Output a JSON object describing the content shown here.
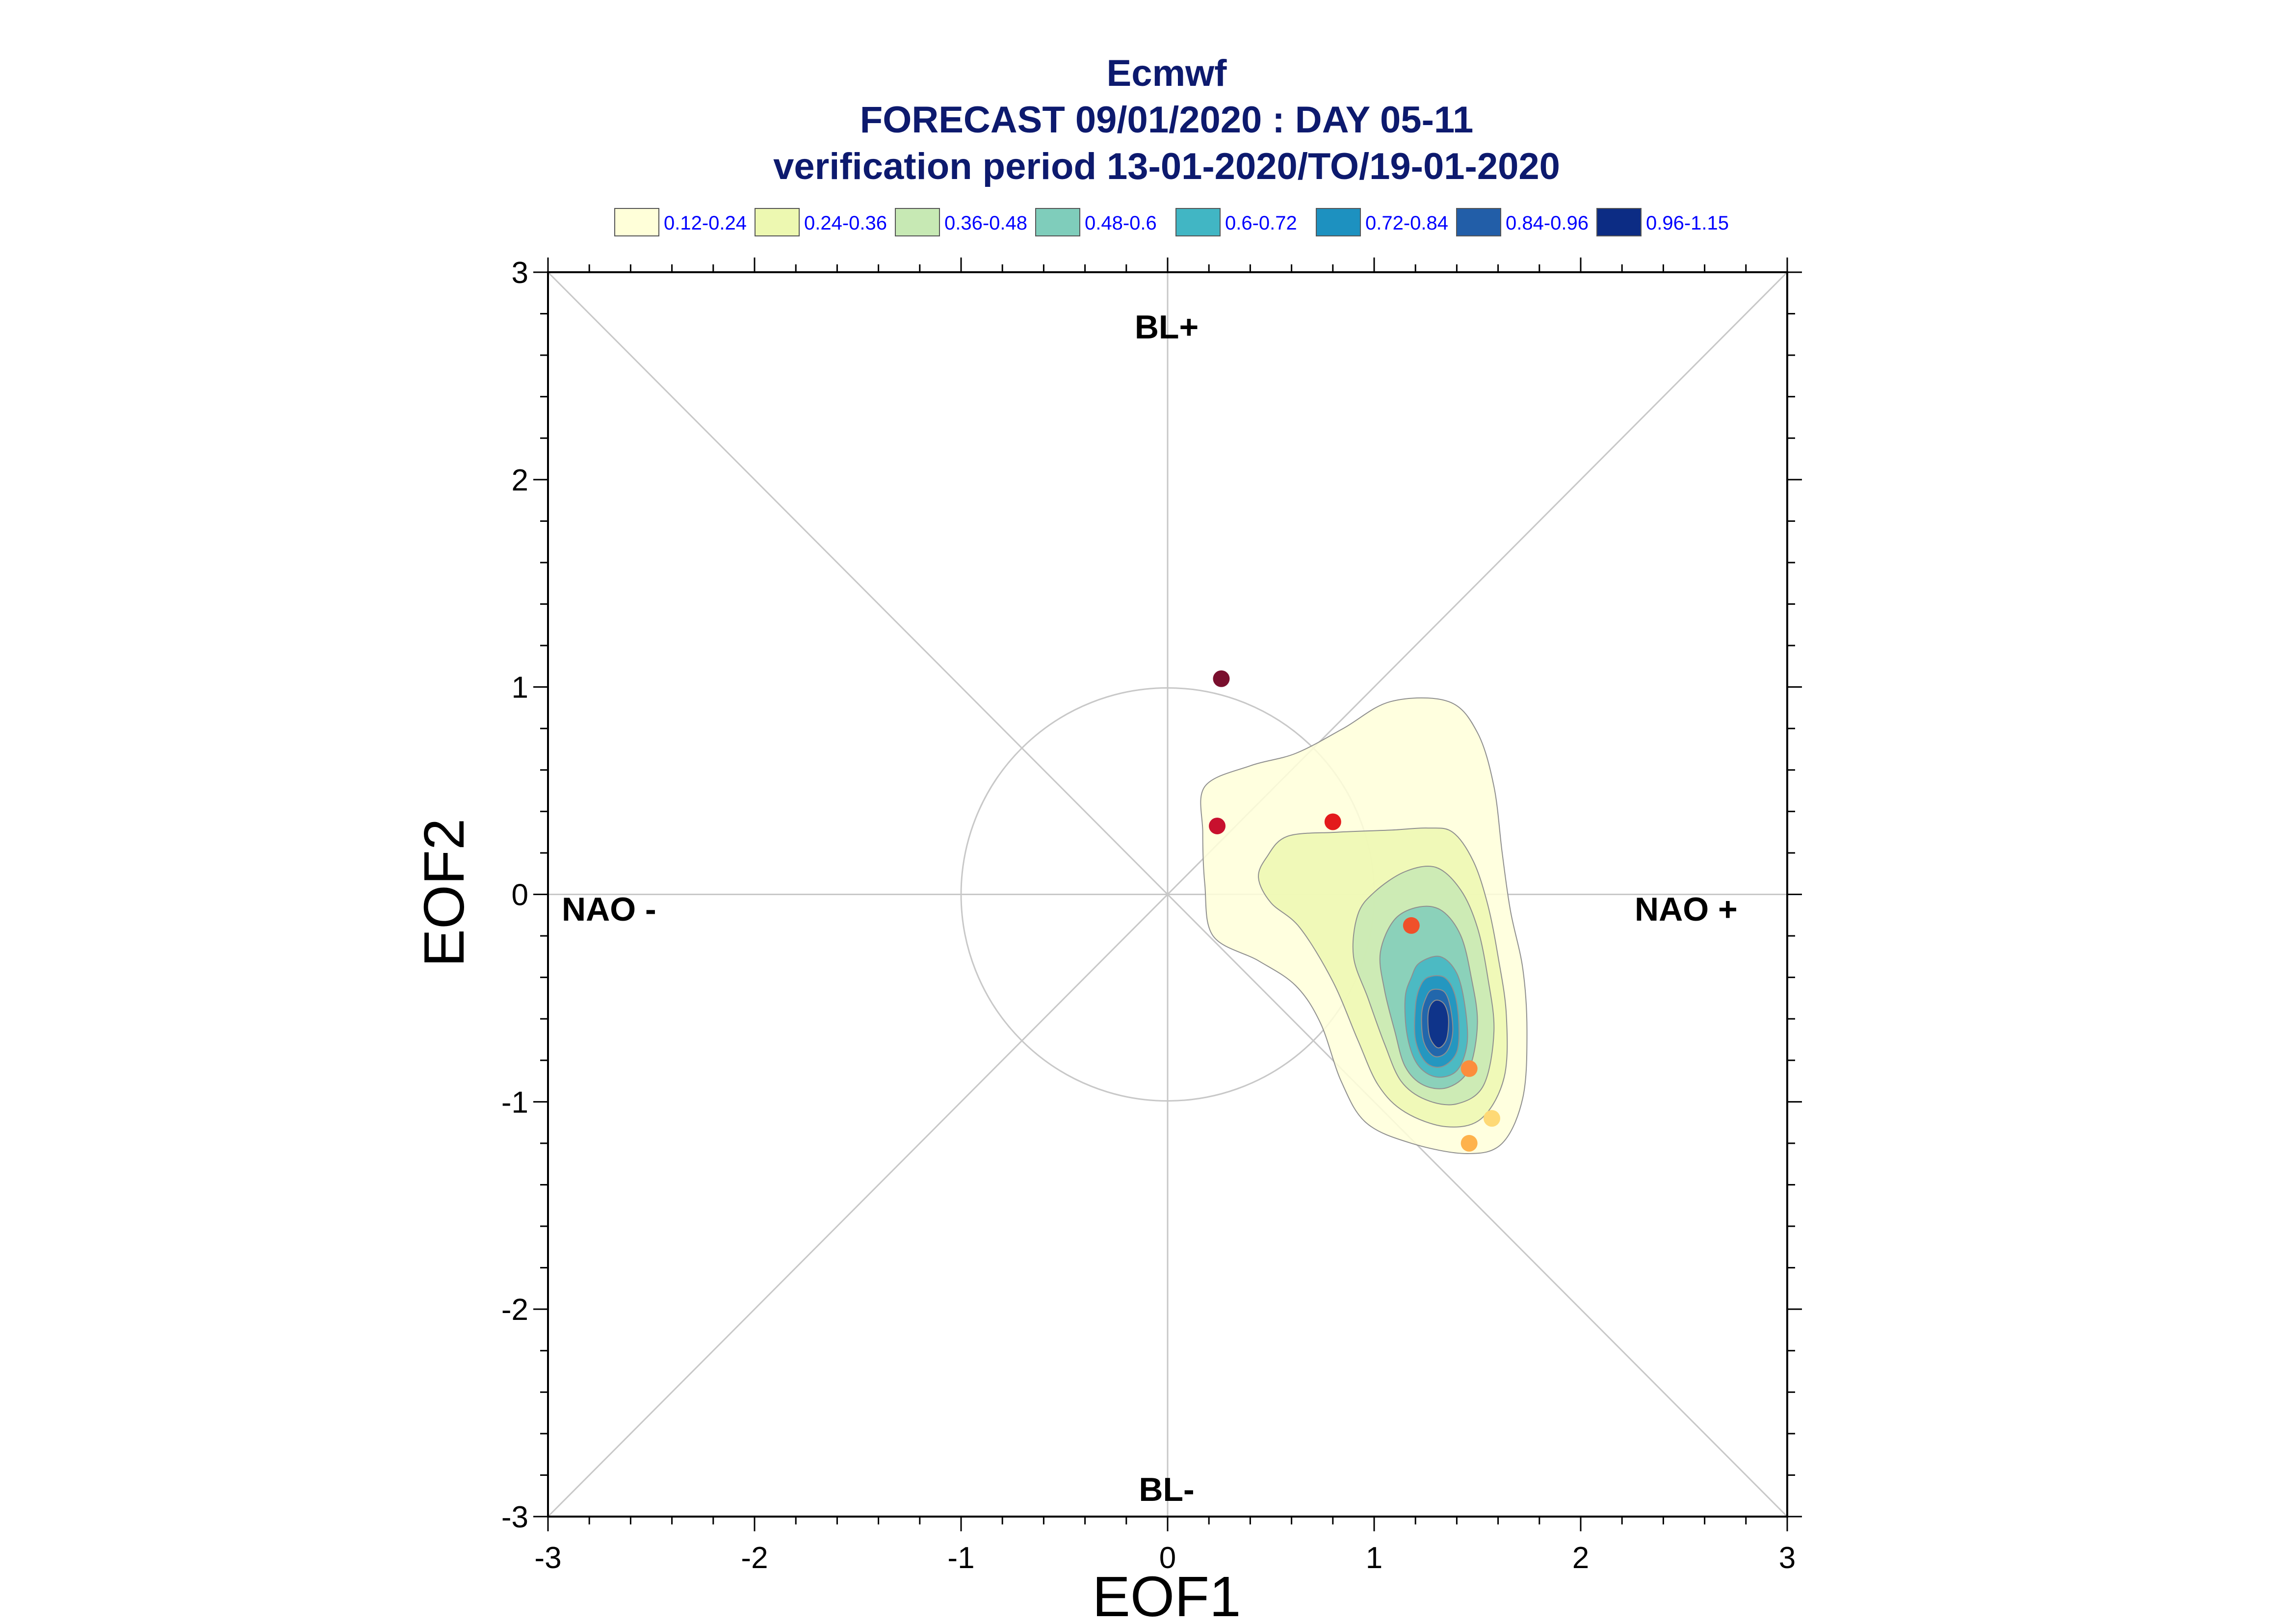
{
  "titles": [
    "Ecmwf",
    "FORECAST 09/01/2020 : DAY 05-11",
    "verification period 13-01-2020/TO/19-01-2020"
  ],
  "legend": [
    {
      "label": "0.12-0.24",
      "color": "#ffffd9"
    },
    {
      "label": "0.24-0.36",
      "color": "#edf8b1"
    },
    {
      "label": "0.36-0.48",
      "color": "#c7e9b4"
    },
    {
      "label": "0.48-0.6",
      "color": "#7fcdbb"
    },
    {
      "label": "0.6-0.72",
      "color": "#41b6c4"
    },
    {
      "label": "0.72-0.84",
      "color": "#1d91c0"
    },
    {
      "label": "0.84-0.96",
      "color": "#225ea8"
    },
    {
      "label": "0.96-1.15",
      "color": "#0c2c84"
    }
  ],
  "regime_labels": {
    "top": "BL+",
    "bottom": "BL-",
    "left": "NAO -",
    "right": "NAO +"
  },
  "chart_data": {
    "type": "scatter",
    "xlabel": "EOF1",
    "ylabel": "EOF2",
    "xlim": [
      -3,
      3
    ],
    "ylim": [
      -3,
      3
    ],
    "xticks": [
      "-3",
      "-2",
      "-1",
      "0",
      "1",
      "2",
      "3"
    ],
    "yticks": [
      "-3",
      "-2",
      "-1",
      "0",
      "1",
      "2",
      "3"
    ],
    "reference_circle_radius": 1,
    "diagonals": true,
    "points": [
      {
        "x": 0.26,
        "y": 1.04,
        "color": "#7a0f2e"
      },
      {
        "x": 0.24,
        "y": 0.33,
        "color": "#c8102e"
      },
      {
        "x": 0.8,
        "y": 0.35,
        "color": "#e31a1c"
      },
      {
        "x": 1.18,
        "y": -0.15,
        "color": "#f0502a"
      },
      {
        "x": 1.46,
        "y": -0.84,
        "color": "#fc8d3c"
      },
      {
        "x": 1.57,
        "y": -1.08,
        "color": "#fed976"
      },
      {
        "x": 1.46,
        "y": -1.2,
        "color": "#feb24c"
      }
    ],
    "density_contours": [
      {
        "level": "0.12-0.24",
        "color": "#ffffd9",
        "path": [
          [
            0.18,
            0.52
          ],
          [
            0.4,
            0.62
          ],
          [
            0.62,
            0.68
          ],
          [
            0.85,
            0.8
          ],
          [
            1.08,
            0.93
          ],
          [
            1.36,
            0.93
          ],
          [
            1.5,
            0.78
          ],
          [
            1.58,
            0.52
          ],
          [
            1.62,
            0.2
          ],
          [
            1.66,
            -0.08
          ],
          [
            1.72,
            -0.36
          ],
          [
            1.74,
            -0.66
          ],
          [
            1.72,
            -0.98
          ],
          [
            1.62,
            -1.2
          ],
          [
            1.45,
            -1.25
          ],
          [
            1.18,
            -1.2
          ],
          [
            0.96,
            -1.1
          ],
          [
            0.84,
            -0.9
          ],
          [
            0.74,
            -0.62
          ],
          [
            0.62,
            -0.44
          ],
          [
            0.44,
            -0.32
          ],
          [
            0.22,
            -0.2
          ],
          [
            0.18,
            0.05
          ],
          [
            0.17,
            0.3
          ]
        ]
      },
      {
        "level": "0.24-0.36",
        "color": "#edf8b1",
        "path": [
          [
            0.48,
            0.18
          ],
          [
            0.58,
            0.28
          ],
          [
            0.82,
            0.3
          ],
          [
            1.08,
            0.31
          ],
          [
            1.26,
            0.32
          ],
          [
            1.38,
            0.3
          ],
          [
            1.48,
            0.16
          ],
          [
            1.55,
            -0.05
          ],
          [
            1.6,
            -0.3
          ],
          [
            1.64,
            -0.58
          ],
          [
            1.63,
            -0.88
          ],
          [
            1.52,
            -1.08
          ],
          [
            1.35,
            -1.12
          ],
          [
            1.15,
            -1.05
          ],
          [
            1.02,
            -0.92
          ],
          [
            0.92,
            -0.7
          ],
          [
            0.8,
            -0.42
          ],
          [
            0.64,
            -0.16
          ],
          [
            0.5,
            -0.04
          ],
          [
            0.44,
            0.08
          ]
        ]
      },
      {
        "level": "0.36-0.48",
        "color": "#c7e9b4",
        "path": [
          [
            1.0,
            0.01
          ],
          [
            1.15,
            0.11
          ],
          [
            1.3,
            0.13
          ],
          [
            1.42,
            0.02
          ],
          [
            1.5,
            -0.16
          ],
          [
            1.55,
            -0.4
          ],
          [
            1.58,
            -0.66
          ],
          [
            1.53,
            -0.92
          ],
          [
            1.4,
            -1.01
          ],
          [
            1.25,
            -0.99
          ],
          [
            1.13,
            -0.9
          ],
          [
            1.05,
            -0.72
          ],
          [
            0.97,
            -0.5
          ],
          [
            0.9,
            -0.3
          ],
          [
            0.92,
            -0.1
          ]
        ]
      },
      {
        "level": "0.48-0.6",
        "color": "#7fcdbb",
        "path": [
          [
            1.1,
            -0.12
          ],
          [
            1.22,
            -0.06
          ],
          [
            1.33,
            -0.08
          ],
          [
            1.42,
            -0.2
          ],
          [
            1.47,
            -0.4
          ],
          [
            1.5,
            -0.62
          ],
          [
            1.46,
            -0.84
          ],
          [
            1.36,
            -0.93
          ],
          [
            1.24,
            -0.92
          ],
          [
            1.15,
            -0.83
          ],
          [
            1.1,
            -0.66
          ],
          [
            1.05,
            -0.46
          ],
          [
            1.03,
            -0.28
          ]
        ]
      },
      {
        "level": "0.6-0.72",
        "color": "#41b6c4",
        "path": [
          [
            1.22,
            -0.33
          ],
          [
            1.32,
            -0.3
          ],
          [
            1.4,
            -0.38
          ],
          [
            1.44,
            -0.54
          ],
          [
            1.45,
            -0.72
          ],
          [
            1.4,
            -0.85
          ],
          [
            1.3,
            -0.88
          ],
          [
            1.21,
            -0.82
          ],
          [
            1.16,
            -0.68
          ],
          [
            1.15,
            -0.5
          ],
          [
            1.18,
            -0.4
          ]
        ]
      },
      {
        "level": "0.72-0.84",
        "color": "#1d91c0",
        "path": [
          [
            1.26,
            -0.4
          ],
          [
            1.34,
            -0.4
          ],
          [
            1.39,
            -0.48
          ],
          [
            1.41,
            -0.62
          ],
          [
            1.4,
            -0.76
          ],
          [
            1.33,
            -0.83
          ],
          [
            1.25,
            -0.81
          ],
          [
            1.2,
            -0.7
          ],
          [
            1.2,
            -0.54
          ],
          [
            1.22,
            -0.45
          ]
        ]
      },
      {
        "level": "0.84-0.96",
        "color": "#225ea8",
        "path": [
          [
            1.28,
            -0.46
          ],
          [
            1.34,
            -0.47
          ],
          [
            1.37,
            -0.55
          ],
          [
            1.38,
            -0.67
          ],
          [
            1.35,
            -0.76
          ],
          [
            1.29,
            -0.78
          ],
          [
            1.24,
            -0.71
          ],
          [
            1.23,
            -0.58
          ],
          [
            1.25,
            -0.5
          ]
        ]
      },
      {
        "level": "0.96-1.15",
        "color": "#0c2c84",
        "path": [
          [
            1.3,
            -0.51
          ],
          [
            1.34,
            -0.53
          ],
          [
            1.36,
            -0.6
          ],
          [
            1.35,
            -0.7
          ],
          [
            1.31,
            -0.74
          ],
          [
            1.27,
            -0.69
          ],
          [
            1.26,
            -0.6
          ],
          [
            1.27,
            -0.54
          ]
        ]
      }
    ]
  }
}
